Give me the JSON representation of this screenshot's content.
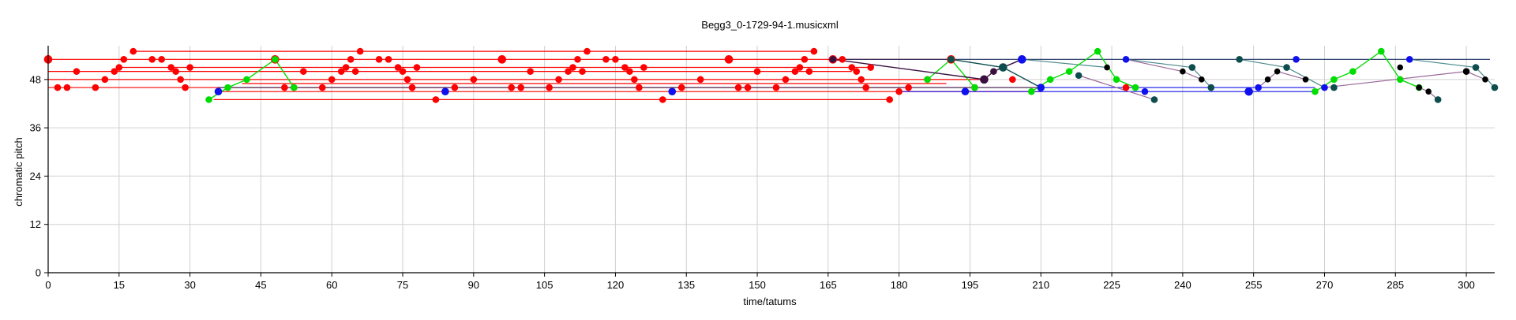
{
  "chart_data": {
    "type": "scatter",
    "title": "Begg3_0-1729-94-1.musicxml",
    "xlabel": "time/tatums",
    "ylabel": "chromatic pitch",
    "xlim": [
      0,
      306
    ],
    "ylim": [
      0,
      55
    ],
    "xticks": [
      0,
      15,
      30,
      45,
      60,
      75,
      90,
      105,
      120,
      135,
      150,
      165,
      180,
      195,
      210,
      225,
      240,
      255,
      270,
      285,
      300
    ],
    "yticks": [
      0,
      12,
      24,
      36,
      48
    ],
    "grid": true,
    "colors": {
      "red": "#ff0000",
      "green": "#00dd00",
      "blue": "#1010ee",
      "teal": "#0d4d4d",
      "navy": "#1a3060",
      "purple": "#3a1040",
      "black": "#000000",
      "tealline": "#4a8a8a",
      "purpleline": "#9a6a9a"
    },
    "sustain_lines": [
      {
        "x1": 0,
        "x2": 191,
        "y": 53,
        "color": "red"
      },
      {
        "x1": 18,
        "x2": 162,
        "y": 55,
        "color": "red"
      },
      {
        "x1": 0,
        "x2": 170,
        "y": 50,
        "color": "red"
      },
      {
        "x1": 15,
        "x2": 174,
        "y": 51,
        "color": "red"
      },
      {
        "x1": 0,
        "x2": 198,
        "y": 48,
        "color": "red"
      },
      {
        "x1": 0,
        "x2": 182,
        "y": 46,
        "color": "red"
      },
      {
        "x1": 35,
        "x2": 178,
        "y": 43,
        "color": "red"
      },
      {
        "x1": 36,
        "x2": 210,
        "y": 45,
        "color": "red"
      },
      {
        "x1": 41,
        "x2": 190,
        "y": 47,
        "color": "red"
      },
      {
        "x1": 165,
        "x2": 305,
        "y": 53,
        "color": "navy"
      },
      {
        "x1": 180,
        "x2": 268,
        "y": 45,
        "color": "blue"
      },
      {
        "x1": 210,
        "x2": 268,
        "y": 46,
        "color": "blue"
      },
      {
        "x1": 36,
        "x2": 210,
        "y": 46,
        "color": "purple"
      }
    ],
    "series": [
      {
        "name": "",
        "color": "red",
        "line": false,
        "points": [
          [
            0,
            53,
            9
          ],
          [
            2,
            46,
            7
          ],
          [
            4,
            46,
            7
          ],
          [
            6,
            50,
            7
          ],
          [
            10,
            46,
            7
          ],
          [
            12,
            48,
            7
          ],
          [
            14,
            50,
            7
          ],
          [
            15,
            51,
            7
          ],
          [
            16,
            53,
            7
          ],
          [
            18,
            55,
            7
          ],
          [
            22,
            53,
            7
          ],
          [
            24,
            53,
            7
          ],
          [
            26,
            51,
            7
          ],
          [
            27,
            50,
            7
          ],
          [
            28,
            48,
            7
          ],
          [
            29,
            46,
            7
          ],
          [
            30,
            51,
            7
          ],
          [
            48,
            53,
            9
          ],
          [
            50,
            46,
            7
          ],
          [
            52,
            46,
            7
          ],
          [
            54,
            50,
            7
          ],
          [
            58,
            46,
            7
          ],
          [
            60,
            48,
            7
          ],
          [
            62,
            50,
            7
          ],
          [
            63,
            51,
            7
          ],
          [
            64,
            53,
            7
          ],
          [
            65,
            50,
            7
          ],
          [
            66,
            55,
            7
          ],
          [
            70,
            53,
            7
          ],
          [
            72,
            53,
            7
          ],
          [
            74,
            51,
            7
          ],
          [
            75,
            50,
            7
          ],
          [
            76,
            48,
            7
          ],
          [
            77,
            46,
            7
          ],
          [
            78,
            51,
            7
          ],
          [
            82,
            43,
            7
          ],
          [
            86,
            46,
            7
          ],
          [
            90,
            48,
            7
          ],
          [
            96,
            53,
            9
          ],
          [
            98,
            46,
            7
          ],
          [
            100,
            46,
            7
          ],
          [
            102,
            50,
            7
          ],
          [
            106,
            46,
            7
          ],
          [
            108,
            48,
            7
          ],
          [
            110,
            50,
            7
          ],
          [
            111,
            51,
            7
          ],
          [
            112,
            53,
            7
          ],
          [
            113,
            50,
            7
          ],
          [
            114,
            55,
            7
          ],
          [
            118,
            53,
            7
          ],
          [
            120,
            53,
            7
          ],
          [
            122,
            51,
            7
          ],
          [
            123,
            50,
            7
          ],
          [
            124,
            48,
            7
          ],
          [
            125,
            46,
            7
          ],
          [
            126,
            51,
            7
          ],
          [
            130,
            43,
            7
          ],
          [
            134,
            46,
            7
          ],
          [
            138,
            48,
            7
          ],
          [
            144,
            53,
            9
          ],
          [
            146,
            46,
            7
          ],
          [
            148,
            46,
            7
          ],
          [
            150,
            50,
            7
          ],
          [
            154,
            46,
            7
          ],
          [
            156,
            48,
            7
          ],
          [
            158,
            50,
            7
          ],
          [
            159,
            51,
            7
          ],
          [
            160,
            53,
            7
          ],
          [
            161,
            50,
            7
          ],
          [
            162,
            55,
            7
          ],
          [
            166,
            53,
            9
          ],
          [
            168,
            53,
            7
          ],
          [
            170,
            51,
            7
          ],
          [
            171,
            50,
            7
          ],
          [
            172,
            48,
            7
          ],
          [
            173,
            46,
            7
          ],
          [
            174,
            51,
            7
          ],
          [
            178,
            43,
            7
          ],
          [
            180,
            45,
            7
          ],
          [
            182,
            46,
            7
          ],
          [
            186,
            48,
            7
          ],
          [
            191,
            53,
            9
          ],
          [
            196,
            46,
            7
          ],
          [
            204,
            48,
            7
          ],
          [
            228,
            46,
            7
          ]
        ]
      },
      {
        "name": "",
        "color": "green",
        "line": true,
        "points": [
          [
            34,
            43,
            7
          ],
          [
            38,
            46,
            7
          ],
          [
            42,
            48,
            7
          ],
          [
            48,
            53,
            7
          ],
          [
            52,
            46,
            7
          ]
        ]
      },
      {
        "name": "",
        "color": "green",
        "line": true,
        "points": [
          [
            186,
            48,
            7
          ],
          [
            191,
            53,
            7
          ],
          [
            196,
            46,
            7
          ]
        ]
      },
      {
        "name": "",
        "color": "green",
        "line": true,
        "points": [
          [
            208,
            45,
            7
          ],
          [
            212,
            48,
            7
          ],
          [
            216,
            50,
            7
          ],
          [
            222,
            55,
            7
          ],
          [
            226,
            48,
            7
          ],
          [
            230,
            46,
            7
          ]
        ]
      },
      {
        "name": "",
        "color": "green",
        "line": true,
        "points": [
          [
            268,
            45,
            7
          ],
          [
            272,
            48,
            7
          ],
          [
            276,
            50,
            7
          ],
          [
            282,
            55,
            7
          ],
          [
            286,
            48,
            7
          ],
          [
            290,
            46,
            7
          ]
        ]
      },
      {
        "name": "",
        "color": "teal",
        "line": true,
        "points": [
          [
            191,
            53,
            7
          ],
          [
            202,
            51,
            9
          ],
          [
            210,
            46,
            7
          ]
        ]
      },
      {
        "name": "",
        "color": "purple",
        "line": true,
        "points": [
          [
            166,
            53,
            7
          ],
          [
            198,
            48,
            9
          ],
          [
            200,
            50,
            7
          ],
          [
            206,
            53,
            7
          ]
        ]
      },
      {
        "name": "",
        "color": "blue",
        "line": false,
        "points": [
          [
            36,
            45,
            8
          ],
          [
            84,
            45,
            8
          ],
          [
            132,
            45,
            8
          ],
          [
            194,
            45,
            8
          ],
          [
            206,
            53,
            9
          ],
          [
            210,
            46,
            8
          ],
          [
            228,
            53,
            7
          ],
          [
            232,
            45,
            7
          ],
          [
            254,
            45,
            9
          ],
          [
            256,
            46,
            7
          ],
          [
            264,
            53,
            7
          ],
          [
            270,
            46,
            7
          ],
          [
            288,
            53,
            7
          ]
        ]
      },
      {
        "name": "",
        "color": "teal",
        "line": false,
        "points": [
          [
            218,
            49,
            7
          ],
          [
            234,
            43,
            7
          ],
          [
            242,
            51,
            7
          ],
          [
            246,
            46,
            7
          ],
          [
            252,
            53,
            7
          ],
          [
            262,
            51,
            7
          ],
          [
            272,
            46,
            7
          ],
          [
            302,
            51,
            7
          ],
          [
            306,
            46,
            7
          ],
          [
            294,
            43,
            7
          ]
        ]
      },
      {
        "name": "",
        "color": "black",
        "line": false,
        "points": [
          [
            224,
            51,
            6
          ],
          [
            240,
            50,
            6
          ],
          [
            244,
            48,
            6
          ],
          [
            258,
            48,
            6
          ],
          [
            260,
            50,
            6
          ],
          [
            266,
            48,
            6
          ],
          [
            286,
            51,
            6
          ],
          [
            290,
            46,
            6
          ],
          [
            292,
            45,
            6
          ],
          [
            300,
            50,
            7
          ],
          [
            304,
            48,
            6
          ]
        ]
      }
    ],
    "thin_lines": [
      {
        "color": "tealline",
        "points": [
          [
            206,
            53
          ],
          [
            224,
            51
          ]
        ]
      },
      {
        "color": "tealline",
        "points": [
          [
            228,
            53
          ],
          [
            242,
            51
          ],
          [
            246,
            46
          ]
        ]
      },
      {
        "color": "tealline",
        "points": [
          [
            252,
            53
          ],
          [
            262,
            51
          ],
          [
            270,
            46
          ]
        ]
      },
      {
        "color": "tealline",
        "points": [
          [
            288,
            53
          ],
          [
            302,
            51
          ],
          [
            306,
            46
          ]
        ]
      },
      {
        "color": "purpleline",
        "points": [
          [
            218,
            49
          ],
          [
            234,
            43
          ]
        ]
      },
      {
        "color": "purpleline",
        "points": [
          [
            228,
            53
          ],
          [
            240,
            50
          ],
          [
            244,
            48
          ]
        ]
      },
      {
        "color": "purpleline",
        "points": [
          [
            256,
            46
          ],
          [
            260,
            50
          ],
          [
            266,
            48
          ]
        ]
      },
      {
        "color": "purpleline",
        "points": [
          [
            286,
            48
          ],
          [
            292,
            45
          ],
          [
            294,
            43
          ]
        ]
      },
      {
        "color": "purpleline",
        "points": [
          [
            270,
            46
          ],
          [
            300,
            50
          ],
          [
            304,
            48
          ]
        ]
      }
    ]
  }
}
